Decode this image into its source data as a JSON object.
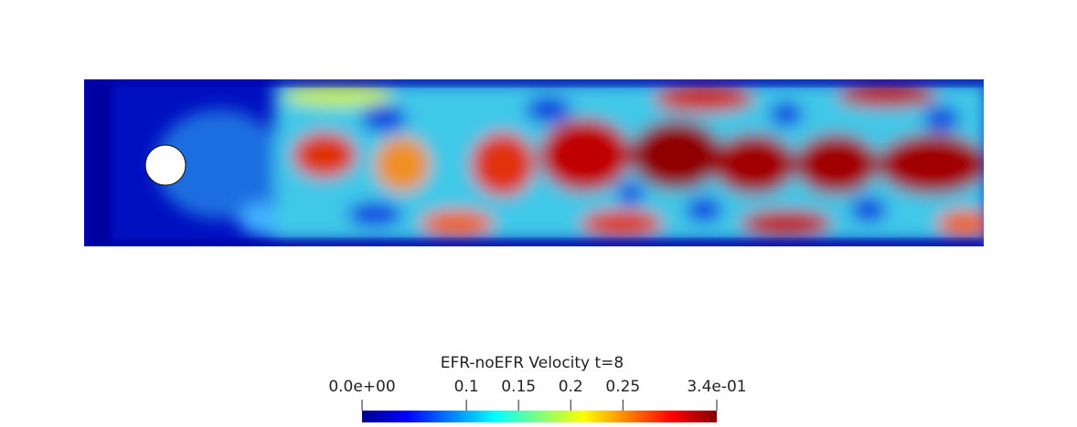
{
  "colorbar": {
    "title": "EFR-noEFR Velocity t=8",
    "range": [
      0,
      0.34
    ],
    "ticks": [
      {
        "value": 0,
        "label": "0.0e+00"
      },
      0.1,
      0.15,
      0.2,
      0.25,
      {
        "value": 0.34,
        "label": "3.4e-01"
      }
    ]
  }
}
